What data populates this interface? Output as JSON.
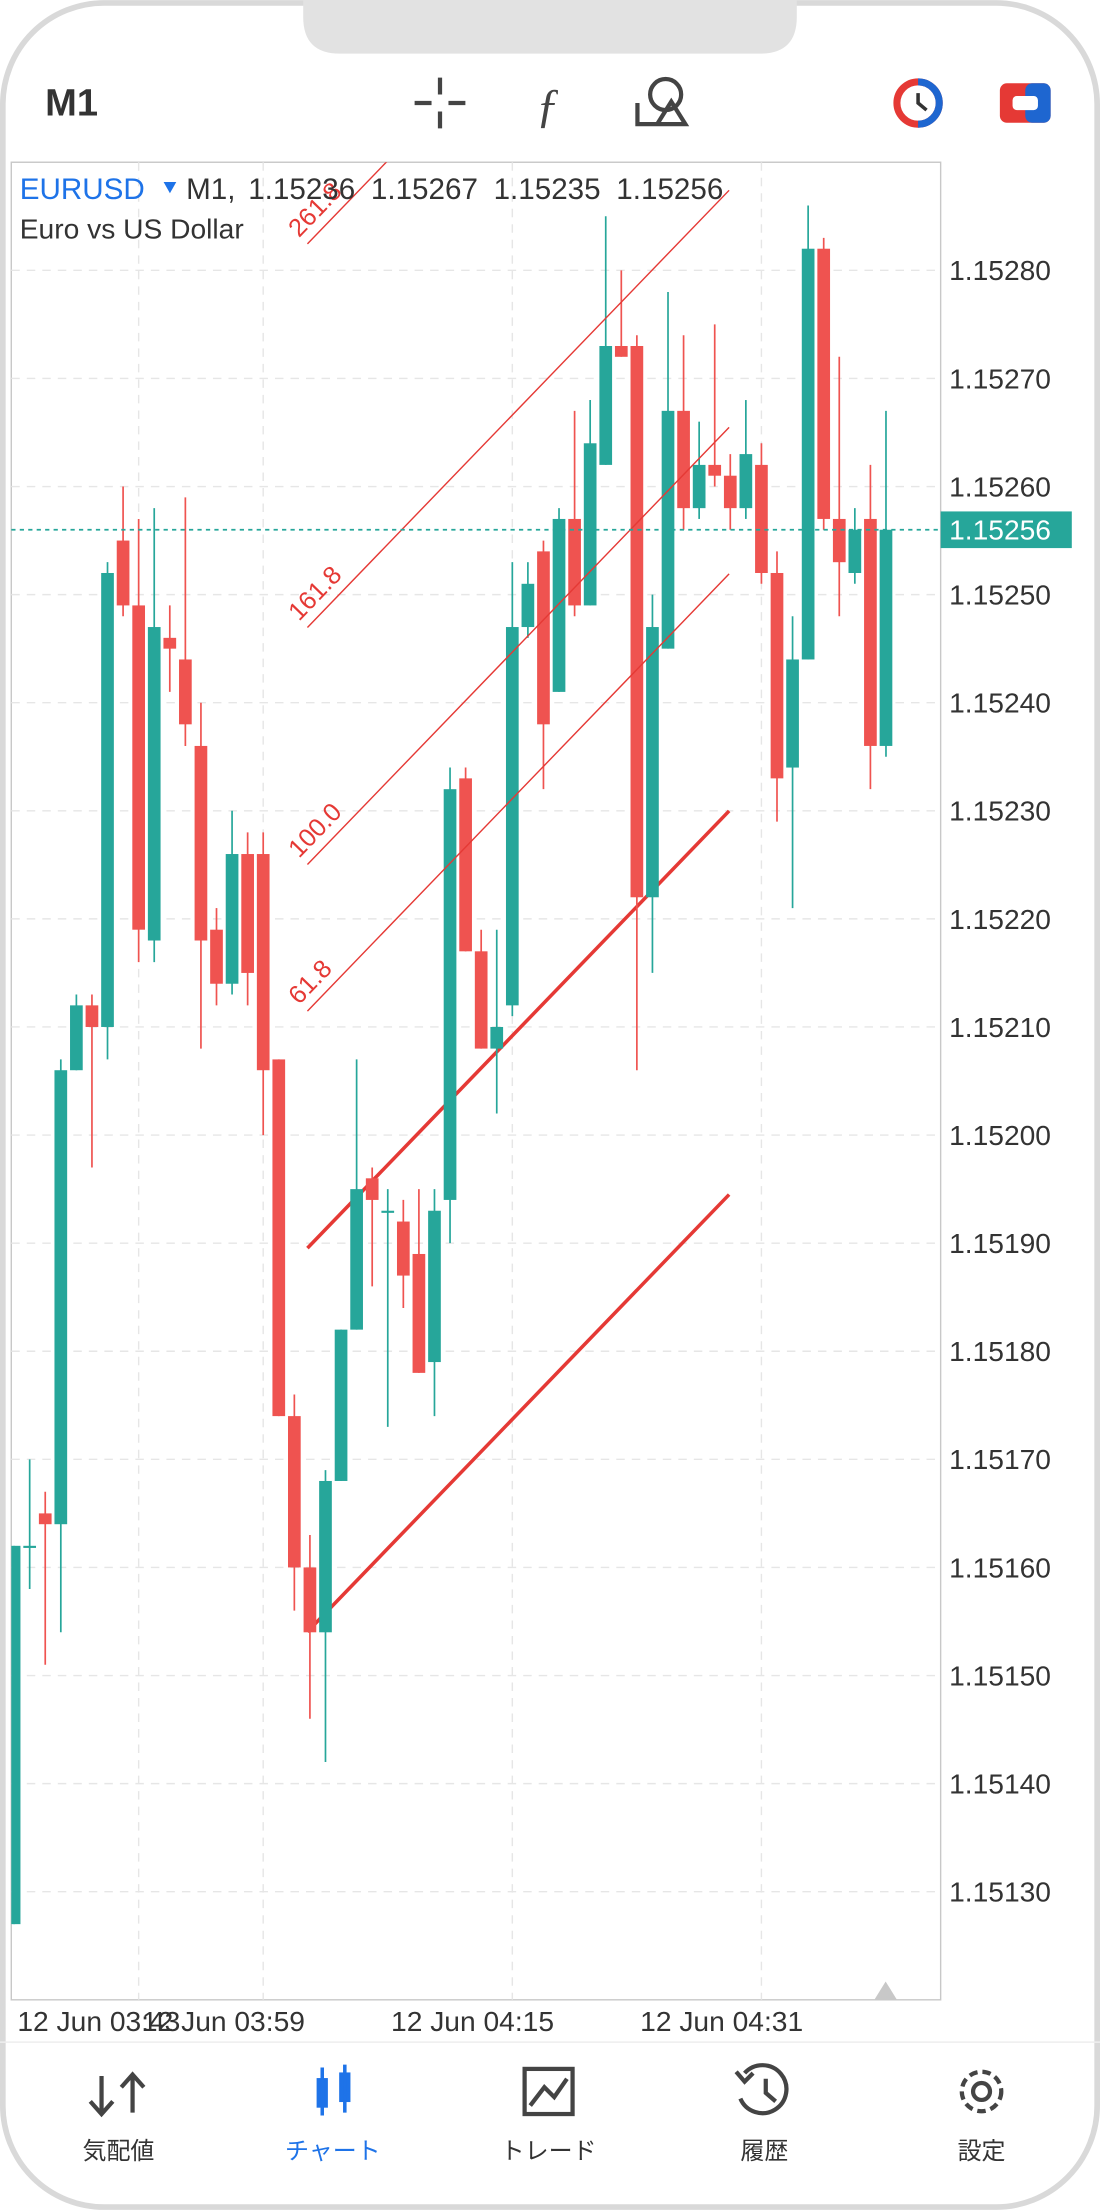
{
  "ui": {
    "timeframe_button": "M1",
    "tabs": [
      "気配値",
      "チャート",
      "トレード",
      "履歴",
      "設定"
    ]
  },
  "chart_data": {
    "type": "candlestick",
    "symbol": "EURUSD",
    "timeframe_label": "M1,",
    "description": "Euro vs US Dollar",
    "up_color": "#26a69a",
    "down_color": "#ef5350",
    "categories": [
      null,
      null,
      null,
      null,
      null,
      null,
      null,
      null,
      "12 Jun 03:43",
      null,
      null,
      null,
      null,
      null,
      null,
      null,
      "12 Jun 03:59",
      null,
      null,
      null,
      null,
      null,
      null,
      null,
      null,
      null,
      null,
      null,
      null,
      null,
      null,
      null,
      "12 Jun 04:15",
      null,
      null,
      null,
      null,
      null,
      null,
      null,
      null,
      null,
      null,
      null,
      null,
      null,
      null,
      null,
      "12 Jun 04:31",
      null,
      null,
      null,
      null,
      null,
      null,
      null,
      null
    ],
    "open": [
      1.15127,
      1.15162,
      1.15165,
      1.15164,
      1.15206,
      1.15212,
      1.1521,
      1.15255,
      1.15249,
      1.15218,
      1.15246,
      1.15244,
      1.15236,
      1.15219,
      1.15214,
      1.15226,
      1.15226,
      1.15207,
      1.15174,
      1.1516,
      1.15154,
      1.15168,
      1.15182,
      1.15196,
      1.15193,
      1.15192,
      1.15189,
      1.15179,
      1.15194,
      1.15233,
      1.15217,
      1.15208,
      1.15212,
      1.15247,
      1.15254,
      1.15241,
      1.15257,
      1.15249,
      1.15262,
      1.15273,
      1.15273,
      1.15222,
      1.15245,
      1.15267,
      1.15258,
      1.15262,
      1.15261,
      1.15258,
      1.15262,
      1.15252,
      1.15234,
      1.15244,
      1.15282,
      1.15257,
      1.15252,
      1.15257,
      1.15236
    ],
    "high": [
      1.15162,
      1.1517,
      1.15167,
      1.15207,
      1.15213,
      1.15213,
      1.15253,
      1.1526,
      1.15257,
      1.15258,
      1.15249,
      1.15259,
      1.1524,
      1.15221,
      1.1523,
      1.15228,
      1.15228,
      1.15207,
      1.15176,
      1.15163,
      1.15169,
      1.15182,
      1.15207,
      1.15197,
      1.15195,
      1.15194,
      1.15195,
      1.15195,
      1.15234,
      1.15234,
      1.15219,
      1.15219,
      1.15253,
      1.15253,
      1.15255,
      1.15258,
      1.15267,
      1.15268,
      1.15285,
      1.1528,
      1.15274,
      1.1525,
      1.15278,
      1.15274,
      1.15266,
      1.15275,
      1.15263,
      1.15268,
      1.15264,
      1.15254,
      1.15248,
      1.15286,
      1.15283,
      1.15272,
      1.15258,
      1.15262,
      1.15267
    ],
    "low": [
      1.15127,
      1.15158,
      1.15151,
      1.15154,
      1.15206,
      1.15197,
      1.15207,
      1.15248,
      1.15216,
      1.15216,
      1.15241,
      1.15236,
      1.15208,
      1.15212,
      1.15213,
      1.15212,
      1.152,
      1.15174,
      1.15156,
      1.15146,
      1.15142,
      1.15168,
      1.15182,
      1.15186,
      1.15173,
      1.15184,
      1.15178,
      1.15174,
      1.1519,
      1.15217,
      1.15208,
      1.15202,
      1.15211,
      1.15246,
      1.15232,
      1.15241,
      1.15248,
      1.15249,
      1.15262,
      1.15272,
      1.15206,
      1.15215,
      1.15245,
      1.15256,
      1.15257,
      1.1526,
      1.15256,
      1.15257,
      1.15251,
      1.15229,
      1.15221,
      1.15244,
      1.15256,
      1.15248,
      1.15251,
      1.15232,
      1.15235
    ],
    "close": [
      1.15162,
      1.15162,
      1.15164,
      1.15206,
      1.15212,
      1.1521,
      1.15252,
      1.15249,
      1.15219,
      1.15247,
      1.15245,
      1.15238,
      1.15218,
      1.15214,
      1.15226,
      1.15215,
      1.15206,
      1.15174,
      1.1516,
      1.15154,
      1.15168,
      1.15182,
      1.15195,
      1.15194,
      1.15193,
      1.15187,
      1.15178,
      1.15193,
      1.15232,
      1.15217,
      1.15208,
      1.1521,
      1.15247,
      1.15251,
      1.15238,
      1.15257,
      1.15249,
      1.15264,
      1.15273,
      1.15272,
      1.15222,
      1.15247,
      1.15267,
      1.15258,
      1.15262,
      1.15261,
      1.15258,
      1.15263,
      1.15252,
      1.15233,
      1.15244,
      1.15282,
      1.15257,
      1.15253,
      1.15256,
      1.15236,
      1.15256
    ],
    "ylim": [
      1.1512,
      1.1529
    ],
    "yticks": [
      {
        "value": 1.1513,
        "label": "1.15130"
      },
      {
        "value": 1.1514,
        "label": "1.15140"
      },
      {
        "value": 1.1515,
        "label": "1.15150"
      },
      {
        "value": 1.1516,
        "label": "1.15160"
      },
      {
        "value": 1.1517,
        "label": "1.15170"
      },
      {
        "value": 1.1518,
        "label": "1.15180"
      },
      {
        "value": 1.1519,
        "label": "1.15190"
      },
      {
        "value": 1.152,
        "label": "1.15200"
      },
      {
        "value": 1.1521,
        "label": "1.15210"
      },
      {
        "value": 1.1522,
        "label": "1.15220"
      },
      {
        "value": 1.1523,
        "label": "1.15230"
      },
      {
        "value": 1.1524,
        "label": "1.15240"
      },
      {
        "value": 1.1525,
        "label": "1.15250"
      },
      {
        "value": 1.1526,
        "label": "1.15260"
      },
      {
        "value": 1.1527,
        "label": "1.15270"
      },
      {
        "value": 1.1528,
        "label": "1.15280"
      }
    ],
    "current_price": 1.15256,
    "fib_color": "#e53935",
    "fib_levels": [
      {
        "value": 61.8,
        "label": "61.8"
      },
      {
        "value": 100,
        "label": "100.0"
      },
      {
        "value": 161.8,
        "label": "161.8"
      },
      {
        "value": 261.8,
        "label": "261.8"
      }
    ]
  }
}
